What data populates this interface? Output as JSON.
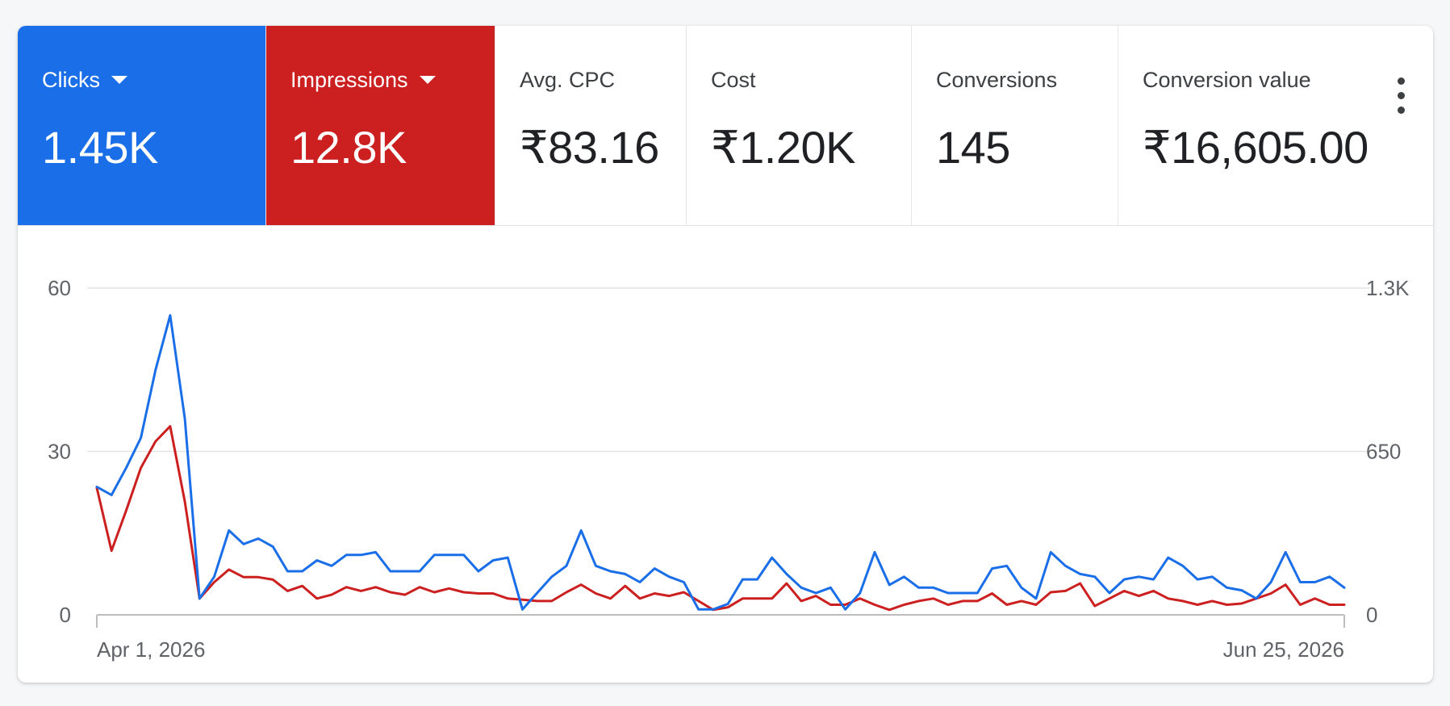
{
  "metrics": [
    {
      "label": "Clicks",
      "value": "1.45K",
      "selected": true,
      "color": "#1a6ee8",
      "dropdown": true
    },
    {
      "label": "Impressions",
      "value": "12.8K",
      "selected": true,
      "color": "#cc2020",
      "dropdown": true
    },
    {
      "label": "Avg. CPC",
      "value": "₹83.16",
      "selected": false
    },
    {
      "label": "Cost",
      "value": "₹1.20K",
      "selected": false
    },
    {
      "label": "Conversions",
      "value": "145",
      "selected": false
    },
    {
      "label": "Conversion value",
      "value": "₹16,605.00",
      "selected": false
    }
  ],
  "more_menu_icon": "more-vert-icon",
  "chart_data": {
    "type": "line",
    "x_start_label": "Apr 1, 2026",
    "x_end_label": "Jun 25, 2026",
    "y_left_ticks": [
      "0",
      "30",
      "60"
    ],
    "y_left_range": [
      0,
      60
    ],
    "y_right_ticks": [
      "0",
      "650",
      "1.3K"
    ],
    "y_right_range": [
      0,
      1300
    ],
    "grid": true,
    "series": [
      {
        "name": "Clicks",
        "axis": "left",
        "color": "#1a6ee8",
        "values": [
          23.5,
          22,
          27,
          32.5,
          45,
          55,
          36,
          3,
          7,
          15.5,
          13,
          14,
          12.5,
          8,
          8,
          10,
          9,
          11,
          11,
          11.5,
          8,
          8,
          8,
          11,
          11,
          11,
          8,
          10,
          10.5,
          1,
          4,
          7,
          9,
          15.5,
          9,
          8,
          7.5,
          6,
          8.5,
          7,
          6,
          1,
          1,
          2,
          6.5,
          6.5,
          10.5,
          7.5,
          5,
          4,
          5,
          1,
          4,
          11.5,
          5.5,
          7,
          5,
          5,
          4,
          4,
          4,
          8.5,
          9,
          5,
          3,
          11.5,
          9,
          7.5,
          7,
          4,
          6.5,
          7,
          6.5,
          10.5,
          9,
          6.5,
          7,
          5,
          4.5,
          3,
          6,
          11.5,
          6,
          6,
          7,
          5
        ]
      },
      {
        "name": "Impressions",
        "axis": "right",
        "color": "#cc2020",
        "values": [
          505,
          255,
          415,
          585,
          690,
          750,
          450,
          65,
          130,
          180,
          150,
          150,
          140,
          95,
          115,
          65,
          80,
          110,
          95,
          110,
          90,
          80,
          110,
          90,
          105,
          90,
          85,
          85,
          65,
          60,
          55,
          55,
          90,
          120,
          85,
          65,
          115,
          65,
          85,
          75,
          90,
          55,
          20,
          30,
          65,
          65,
          65,
          125,
          55,
          75,
          40,
          40,
          65,
          40,
          20,
          40,
          55,
          65,
          40,
          55,
          55,
          85,
          40,
          55,
          40,
          90,
          95,
          125,
          35,
          65,
          95,
          75,
          95,
          65,
          55,
          40,
          55,
          40,
          45,
          65,
          85,
          120,
          40,
          65,
          40,
          40
        ]
      }
    ]
  }
}
